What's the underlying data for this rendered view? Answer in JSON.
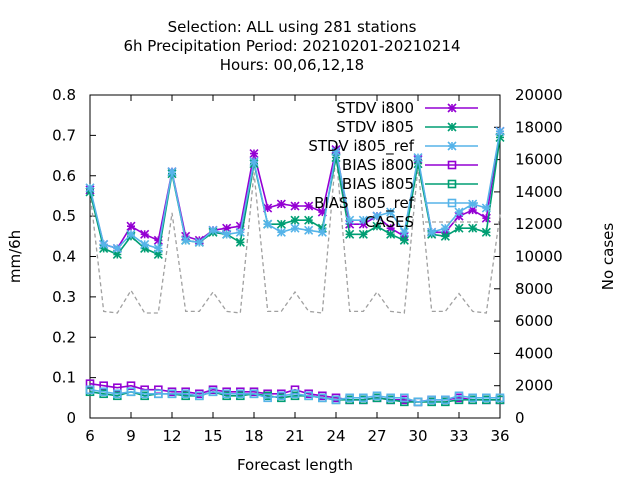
{
  "chart_data": {
    "type": "line",
    "title_lines": [
      "Selection: ALL using   281 stations",
      "6h Precipitation   Period: 20210201-20210214",
      "Hours:  00,06,12,18"
    ],
    "xlabel": "Forecast length",
    "ylabel": "mm/6h",
    "y2label": "No cases",
    "xlim": [
      6,
      36
    ],
    "ylim": [
      0,
      0.8
    ],
    "y2lim": [
      0,
      20000
    ],
    "xticks": [
      6,
      9,
      12,
      15,
      18,
      21,
      24,
      27,
      30,
      33,
      36
    ],
    "yticks": [
      0,
      0.1,
      0.2,
      0.3,
      0.4,
      0.5,
      0.6,
      0.7,
      0.8
    ],
    "y2ticks": [
      0,
      2000,
      4000,
      6000,
      8000,
      10000,
      12000,
      14000,
      16000,
      18000,
      20000
    ],
    "grid": false,
    "legend_position": "top-right",
    "x": [
      6,
      7,
      8,
      9,
      10,
      11,
      12,
      13,
      14,
      15,
      16,
      17,
      18,
      19,
      20,
      21,
      22,
      23,
      24,
      25,
      26,
      27,
      28,
      29,
      30,
      31,
      32,
      33,
      34,
      35,
      36
    ],
    "series": [
      {
        "name": "STDV i800",
        "axis": "y1",
        "color": "#9400d3",
        "marker": "x",
        "dash": "solid",
        "values": [
          0.565,
          0.43,
          0.42,
          0.475,
          0.455,
          0.44,
          0.61,
          0.45,
          0.44,
          0.465,
          0.47,
          0.475,
          0.655,
          0.52,
          0.53,
          0.525,
          0.525,
          0.51,
          0.665,
          0.48,
          0.48,
          0.5,
          0.47,
          0.45,
          0.64,
          0.46,
          0.46,
          0.5,
          0.515,
          0.495,
          0.71
        ]
      },
      {
        "name": "STDV i805",
        "axis": "y1",
        "color": "#009e73",
        "marker": "x",
        "dash": "solid",
        "values": [
          0.56,
          0.42,
          0.405,
          0.45,
          0.42,
          0.405,
          0.605,
          0.44,
          0.435,
          0.46,
          0.455,
          0.435,
          0.63,
          0.48,
          0.48,
          0.49,
          0.49,
          0.47,
          0.645,
          0.455,
          0.455,
          0.475,
          0.455,
          0.44,
          0.63,
          0.455,
          0.45,
          0.47,
          0.47,
          0.46,
          0.695
        ]
      },
      {
        "name": "STDV i805_ref",
        "axis": "y1",
        "color": "#56b4e9",
        "marker": "x",
        "dash": "solid",
        "values": [
          0.57,
          0.43,
          0.42,
          0.455,
          0.43,
          0.42,
          0.61,
          0.44,
          0.435,
          0.465,
          0.455,
          0.46,
          0.635,
          0.48,
          0.46,
          0.47,
          0.465,
          0.46,
          0.66,
          0.49,
          0.49,
          0.5,
          0.51,
          0.46,
          0.645,
          0.46,
          0.47,
          0.51,
          0.53,
          0.52,
          0.71
        ]
      },
      {
        "name": "BIAS i800",
        "axis": "y1",
        "color": "#9400d3",
        "marker": "square",
        "dash": "solid",
        "values": [
          0.085,
          0.08,
          0.075,
          0.08,
          0.07,
          0.07,
          0.065,
          0.065,
          0.06,
          0.07,
          0.065,
          0.065,
          0.065,
          0.06,
          0.06,
          0.07,
          0.06,
          0.055,
          0.05,
          0.045,
          0.045,
          0.05,
          0.045,
          0.045,
          0.04,
          0.045,
          0.045,
          0.05,
          0.045,
          0.045,
          0.045
        ]
      },
      {
        "name": "BIAS i805",
        "axis": "y1",
        "color": "#009e73",
        "marker": "square",
        "dash": "solid",
        "values": [
          0.065,
          0.06,
          0.055,
          0.065,
          0.055,
          0.06,
          0.06,
          0.055,
          0.055,
          0.065,
          0.055,
          0.055,
          0.06,
          0.055,
          0.05,
          0.055,
          0.055,
          0.05,
          0.045,
          0.045,
          0.045,
          0.05,
          0.045,
          0.04,
          0.04,
          0.04,
          0.04,
          0.045,
          0.045,
          0.045,
          0.045
        ]
      },
      {
        "name": "BIAS i805_ref",
        "axis": "y1",
        "color": "#56b4e9",
        "marker": "square",
        "dash": "solid",
        "values": [
          0.07,
          0.065,
          0.06,
          0.065,
          0.06,
          0.06,
          0.06,
          0.06,
          0.055,
          0.065,
          0.06,
          0.06,
          0.06,
          0.05,
          0.055,
          0.06,
          0.055,
          0.05,
          0.045,
          0.05,
          0.05,
          0.055,
          0.05,
          0.05,
          0.04,
          0.045,
          0.045,
          0.055,
          0.05,
          0.05,
          0.05
        ]
      },
      {
        "name": "CASES",
        "axis": "y2",
        "color": "#a0a0a0",
        "marker": "none",
        "dash": "dashed",
        "values": [
          14000,
          6600,
          6500,
          7900,
          6500,
          6500,
          12700,
          6600,
          6600,
          7800,
          6600,
          6500,
          15200,
          6600,
          6600,
          7800,
          6600,
          6500,
          16400,
          6600,
          6600,
          7800,
          6600,
          6500,
          15600,
          6600,
          6600,
          7700,
          6600,
          6500,
          12600
        ]
      }
    ]
  }
}
